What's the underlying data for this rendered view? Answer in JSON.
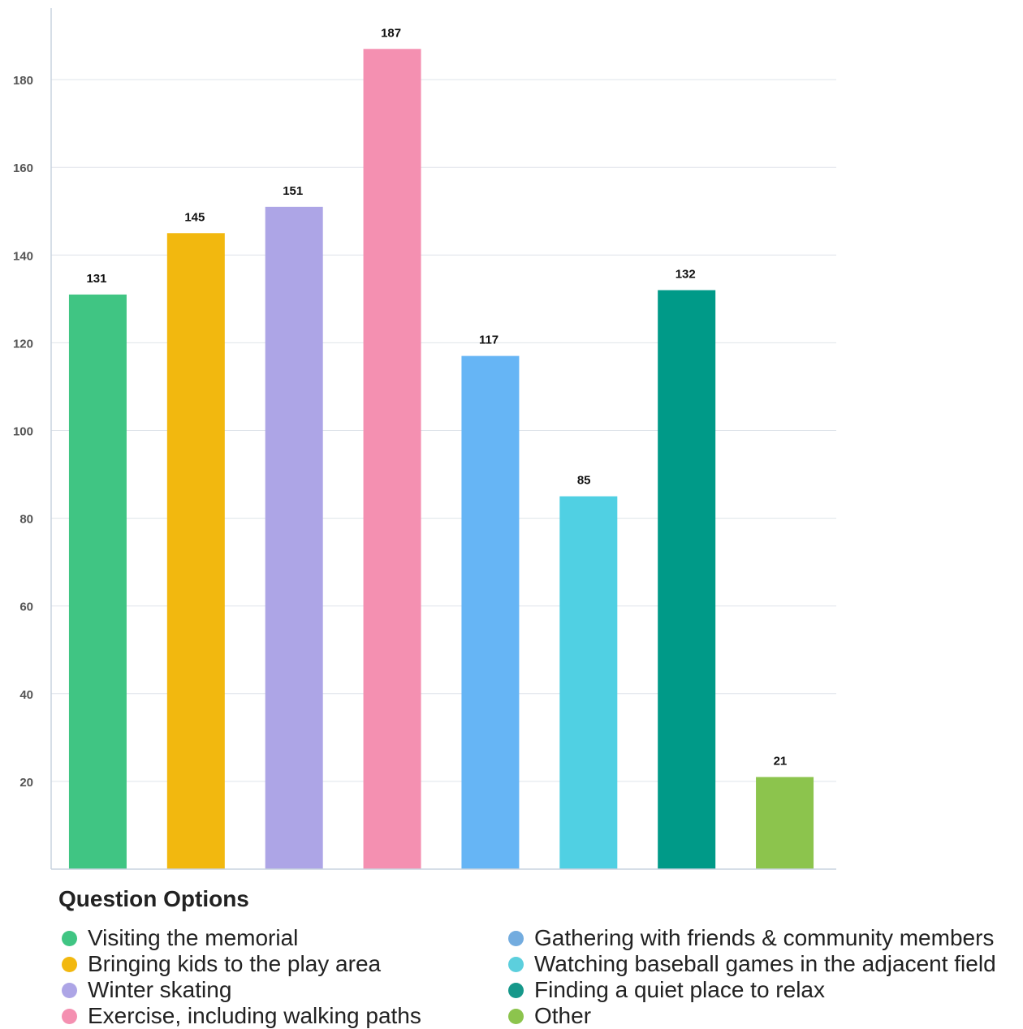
{
  "chart_data": {
    "type": "bar",
    "categories": [
      "Visiting the memorial",
      "Bringing kids to the play area",
      "Winter skating",
      "Exercise, including walking paths",
      "Gathering with friends & community members",
      "Watching baseball games in the adjacent field",
      "Finding a quiet place to relax",
      "Other"
    ],
    "values": [
      131,
      145,
      151,
      187,
      117,
      85,
      132,
      21
    ],
    "colors": [
      "#40c583",
      "#f2b80f",
      "#ada5e6",
      "#f490b1",
      "#66b5f5",
      "#50d0e3",
      "#009a88",
      "#8cc44d"
    ],
    "legend_colors": [
      "#40c583",
      "#f2b80f",
      "#ada5e6",
      "#f490b1",
      "#73acdf",
      "#5ccfdd",
      "#16988a",
      "#8cc44d"
    ],
    "ylim": [
      0,
      200
    ],
    "yticks": [
      "20",
      "40",
      "60",
      "80",
      "100",
      "120",
      "140",
      "160",
      "180",
      "200"
    ],
    "grid": true,
    "legend": {
      "title": "Question Options",
      "position": "bottom"
    }
  }
}
